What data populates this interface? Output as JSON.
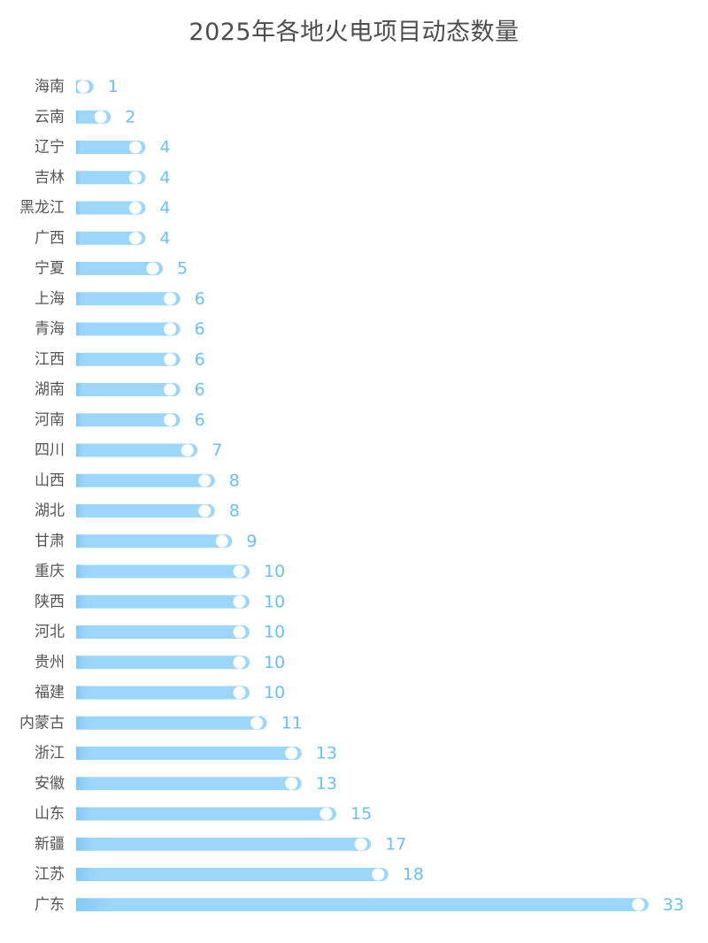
{
  "colors": {
    "bar": "#9dd6fb",
    "bar_start": "#86c8f5",
    "knob": "#ffffff",
    "value_label": "#6cc0ea",
    "category_label": "#555555",
    "title": "#4d4d4d"
  },
  "chart_data": {
    "type": "bar",
    "orientation": "horizontal",
    "title": "2025年各地火电项目动态数量",
    "xlabel": "",
    "ylabel": "",
    "xlim": [
      0,
      33
    ],
    "grid": false,
    "legend": "none",
    "categories": [
      "海南",
      "云南",
      "辽宁",
      "吉林",
      "黑龙江",
      "广西",
      "宁夏",
      "上海",
      "青海",
      "江西",
      "湖南",
      "河南",
      "四川",
      "山西",
      "湖北",
      "甘肃",
      "重庆",
      "陕西",
      "河北",
      "贵州",
      "福建",
      "内蒙古",
      "浙江",
      "安徽",
      "山东",
      "新疆",
      "江苏",
      "广东"
    ],
    "values": [
      1,
      2,
      4,
      4,
      4,
      4,
      5,
      6,
      6,
      6,
      6,
      6,
      7,
      8,
      8,
      9,
      10,
      10,
      10,
      10,
      10,
      11,
      13,
      13,
      15,
      17,
      18,
      33
    ]
  }
}
